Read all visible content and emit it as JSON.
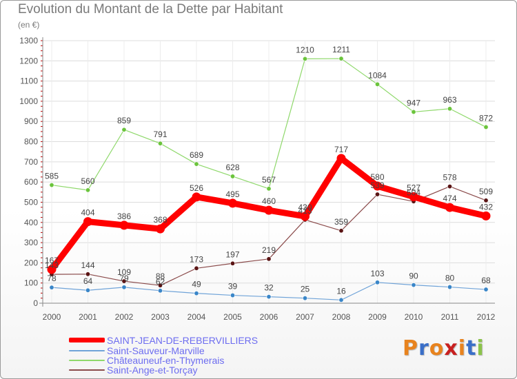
{
  "chart_data": {
    "type": "line",
    "title": "Evolution du Montant de la Dette par Habitant",
    "subtitle": "(en €)",
    "x": [
      "2000",
      "2001",
      "2002",
      "2003",
      "2004",
      "2005",
      "2006",
      "2007",
      "2008",
      "2009",
      "2010",
      "2011",
      "2012"
    ],
    "ylim": [
      0,
      1300
    ],
    "yticks": [
      "0",
      "100",
      "200",
      "300",
      "400",
      "500",
      "600",
      "700",
      "800",
      "900",
      "1000",
      "1100",
      "1200",
      "1300"
    ],
    "grid": true,
    "legend_position": "bottom-left",
    "series": [
      {
        "name": "SAINT-JEAN-DE-REBERVILLIERS",
        "color": "#ff0000",
        "marker_color": "#ff0000",
        "values": [
          167,
          404,
          386,
          368,
          526,
          495,
          460,
          430,
          717,
          580,
          527,
          474,
          432
        ]
      },
      {
        "name": "Saint-Sauveur-Marville",
        "color": "#6fa3d8",
        "marker_color": "#3a86c8",
        "values": [
          78,
          64,
          79,
          62,
          49,
          39,
          32,
          25,
          16,
          103,
          90,
          80,
          68
        ]
      },
      {
        "name": "Châteauneuf-en-Thymerais",
        "color": "#8ed86a",
        "marker_color": "#6bc43c",
        "values": [
          585,
          560,
          859,
          791,
          689,
          628,
          567,
          1210,
          1211,
          1084,
          947,
          963,
          872
        ]
      },
      {
        "name": "Saint-Ange-et-Torçay",
        "color": "#8a4a4a",
        "marker_color": "#5a1414",
        "values": [
          143,
          144,
          109,
          88,
          173,
          197,
          219,
          413,
          359,
          539,
          504,
          578,
          509
        ]
      }
    ]
  },
  "logo": {
    "text": "Proxiti",
    "colors": [
      "#e8831e",
      "#3a6fc8",
      "#e8831e",
      "#c82020",
      "#e8831e",
      "#3a6fc8",
      "#8bc34a"
    ]
  }
}
